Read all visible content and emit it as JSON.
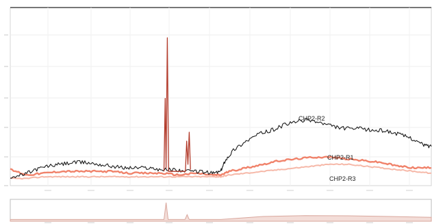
{
  "chart_data": [
    {
      "type": "line",
      "title": "",
      "xlabel": "",
      "ylabel": "",
      "grid": true,
      "legend": "inline labels at right",
      "xlim": [
        0,
        100
      ],
      "ylim": [
        0,
        100
      ],
      "series": [
        {
          "name": "CHP2-R2",
          "color": "#1a1a1a",
          "x": [
            0,
            3,
            6,
            9,
            12,
            15,
            18,
            21,
            24,
            27,
            30,
            33,
            36,
            39,
            42,
            45,
            48,
            50,
            51,
            53,
            56,
            59,
            62,
            65,
            68,
            71,
            74,
            77,
            80,
            83,
            86,
            89,
            92,
            95,
            98,
            100
          ],
          "y": [
            5,
            6,
            9,
            11,
            12,
            13,
            13,
            12,
            11,
            10,
            10,
            10,
            9,
            9,
            8,
            8,
            7,
            8,
            14,
            20,
            25,
            29,
            31,
            34,
            36,
            37,
            35,
            33,
            32,
            32,
            31,
            31,
            29,
            27,
            23,
            22
          ]
        },
        {
          "name": "CHP2-R1",
          "color": "#f0826a",
          "x": [
            0,
            4,
            8,
            12,
            16,
            20,
            24,
            28,
            32,
            36,
            40,
            44,
            48,
            50,
            52,
            56,
            60,
            64,
            68,
            72,
            76,
            80,
            84,
            88,
            92,
            96,
            100
          ],
          "y": [
            9,
            6,
            7,
            8,
            8,
            8,
            8,
            7,
            7,
            7,
            6,
            7,
            6,
            6,
            8,
            10,
            12,
            14,
            15,
            16,
            16,
            15,
            14,
            13,
            11,
            10,
            10
          ]
        },
        {
          "name": "CHP2-R3",
          "color": "#f6b8a8",
          "x": [
            0,
            4,
            8,
            12,
            16,
            20,
            24,
            28,
            32,
            36,
            40,
            44,
            48,
            50,
            52,
            56,
            60,
            64,
            68,
            72,
            76,
            80,
            84,
            88,
            92,
            96,
            100
          ],
          "y": [
            4,
            4,
            5,
            5,
            5,
            5,
            5,
            5,
            5,
            5,
            5,
            5,
            5,
            5,
            6,
            7,
            8,
            9,
            10,
            11,
            12,
            12,
            11,
            10,
            9,
            8,
            7
          ]
        },
        {
          "name": "",
          "color": "#b23a2a",
          "x": [
            36.5,
            36.8,
            37.0,
            37.3,
            37.6,
            41.6,
            41.9,
            42.2,
            42.5,
            42.8
          ],
          "y": [
            8,
            49,
            10,
            83,
            8,
            8,
            25,
            12,
            30,
            9
          ]
        }
      ]
    },
    {
      "type": "area",
      "title": "",
      "grid": false,
      "xlim": [
        0,
        100
      ],
      "ylim": [
        0,
        100
      ],
      "series": [
        {
          "name": "",
          "color": "#d9a79d",
          "x": [
            0,
            36.5,
            37.0,
            37.5,
            41.5,
            42.0,
            42.5,
            50,
            60,
            70,
            80,
            90,
            100
          ],
          "y": [
            8,
            8,
            85,
            8,
            8,
            30,
            8,
            8,
            22,
            26,
            25,
            22,
            18
          ]
        }
      ]
    }
  ]
}
